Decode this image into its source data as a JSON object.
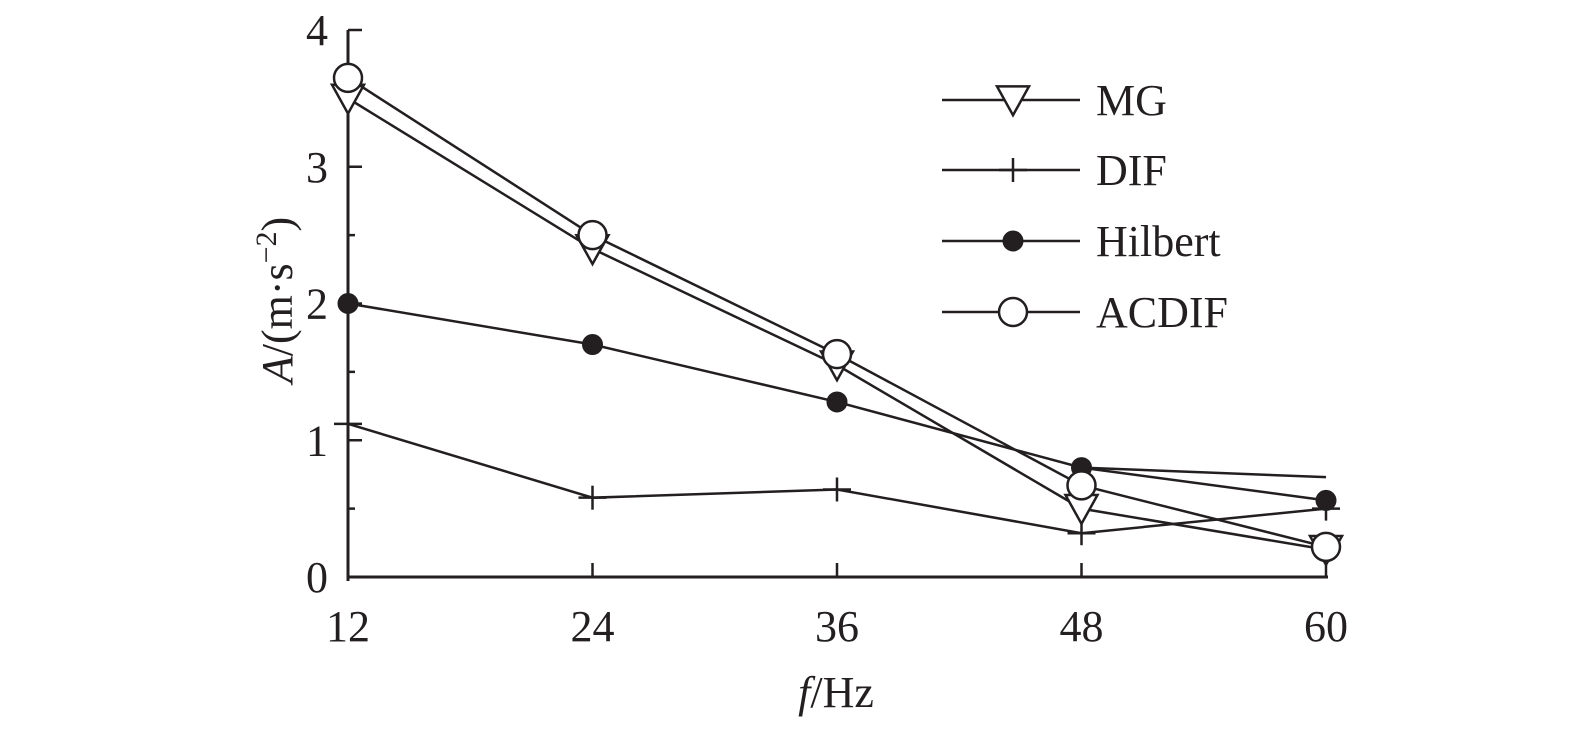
{
  "chart_data": {
    "type": "line",
    "x": [
      12,
      24,
      36,
      48,
      60
    ],
    "x_tick_labels": [
      "12",
      "24",
      "36",
      "48",
      "60"
    ],
    "y_tick_labels": [
      "0",
      "1",
      "2",
      "3",
      "4"
    ],
    "xlim": [
      12,
      60
    ],
    "ylim": [
      0,
      4
    ],
    "xlabel": {
      "var": "f",
      "unit": "/Hz"
    },
    "ylabel": {
      "var": "A",
      "unit": "/(m·s",
      "exp": "−2",
      "close": ")"
    },
    "legend_placement": "top-right",
    "grid": false,
    "series": [
      {
        "name": "MG",
        "marker": "triangle-down-open",
        "values": [
          3.5,
          2.4,
          1.55,
          0.5,
          0.2
        ]
      },
      {
        "name": "DIF",
        "marker": "plus",
        "values": [
          1.12,
          0.58,
          0.64,
          0.32,
          0.5
        ]
      },
      {
        "name": "Hilbert",
        "marker": "circle-filled",
        "values": [
          2.0,
          1.7,
          1.28,
          0.8,
          0.56
        ]
      },
      {
        "name": "ACDIF",
        "marker": "circle-open",
        "values": [
          3.65,
          2.5,
          1.63,
          0.67,
          0.22
        ]
      }
    ],
    "extra_segments": [
      {
        "from": [
          48,
          0.8
        ],
        "to": [
          60,
          0.73
        ]
      }
    ]
  }
}
